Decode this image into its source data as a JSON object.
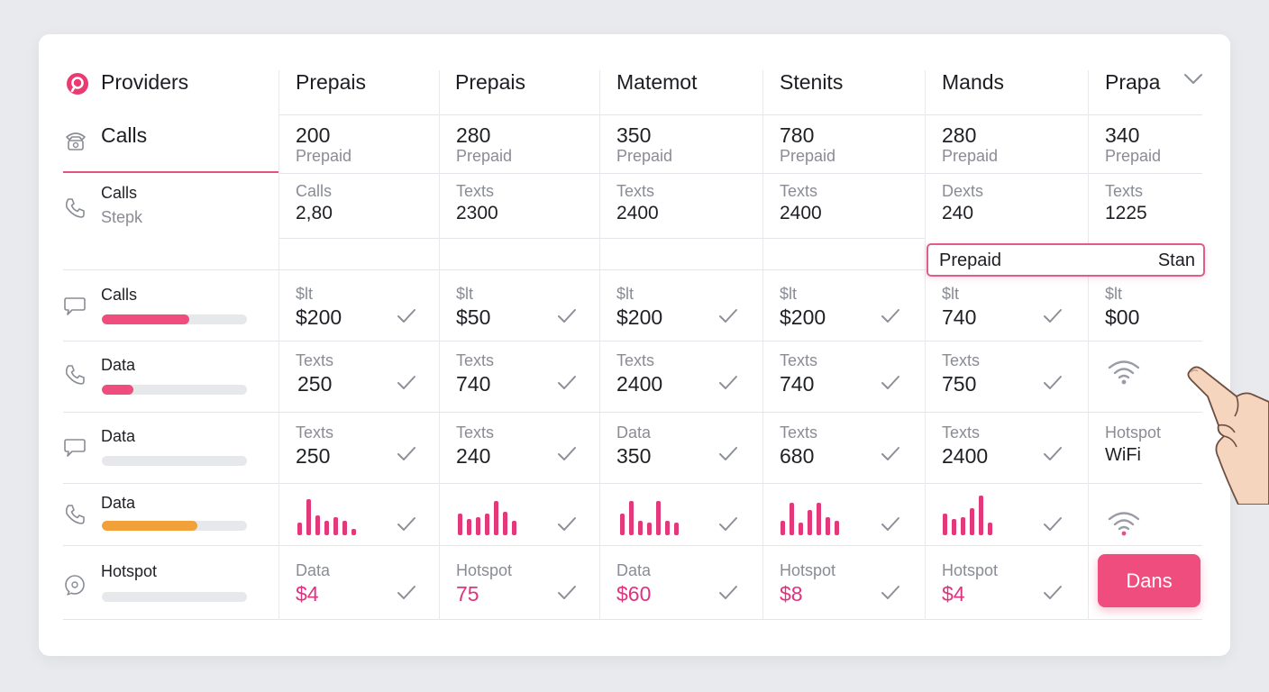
{
  "header": {
    "title": "Providers",
    "columns": [
      "Prepais",
      "Prepais",
      "Matemot",
      "Stenits",
      "Mands",
      "Prapa"
    ]
  },
  "rows": {
    "prices": {
      "label": "Calls",
      "values": [
        "200",
        "280",
        "350",
        "780",
        "280",
        "340"
      ],
      "sub": [
        "Prepaid",
        "Prepaid",
        "Prepaid",
        "Prepaid",
        "Prepaid",
        "Prepaid"
      ]
    },
    "texts": {
      "label": "Calls",
      "sublabel": "Stepk",
      "labels": [
        "Calls",
        "Texts",
        "Texts",
        "Texts",
        "Dexts",
        "Texts"
      ],
      "values": [
        "2,80",
        "2300",
        "2400",
        "2400",
        "240",
        "1225"
      ]
    },
    "calls": {
      "label": "Calls",
      "progress": 0.6,
      "labels": [
        "$lt",
        "$lt",
        "$lt",
        "$lt",
        "$lt",
        "$lt"
      ],
      "values": [
        "$200",
        "$50",
        "$200",
        "$200",
        "740",
        "$00"
      ]
    },
    "data1": {
      "label": "Data",
      "progress": 0.22,
      "labels": [
        "Texts",
        "Texts",
        "Texts",
        "Texts",
        "Texts"
      ],
      "values": [
        "250",
        "740",
        "2400",
        "740",
        "750"
      ]
    },
    "data2": {
      "label": "Data",
      "progress": 0,
      "labels": [
        "Texts",
        "Texts",
        "Data",
        "Texts",
        "Texts",
        "Hotspot"
      ],
      "values": [
        "250",
        "240",
        "350",
        "680",
        "2400",
        "WiFi"
      ]
    },
    "data3": {
      "label": "Data",
      "progress": 0.66
    },
    "hotspot": {
      "label": "Hotspot",
      "progress": 0,
      "labels": [
        "Data",
        "Hotspot",
        "Data",
        "Hotspot",
        "Hotspot"
      ],
      "values": [
        "$4",
        "75",
        "$60",
        "$8",
        "$4"
      ]
    }
  },
  "highlight": {
    "left": "Prepaid",
    "right": "Stan"
  },
  "action_button": "Dans",
  "colors": {
    "accent": "#ef4d7d",
    "orange": "#f2a03a",
    "pink_text": "#e0327f"
  },
  "icons": [
    "providers-logo-icon",
    "telephone-icon",
    "phone-icon",
    "chat-bubble-icon",
    "check-icon",
    "wifi-icon",
    "chevron-down-icon",
    "pointing-hand-icon"
  ]
}
